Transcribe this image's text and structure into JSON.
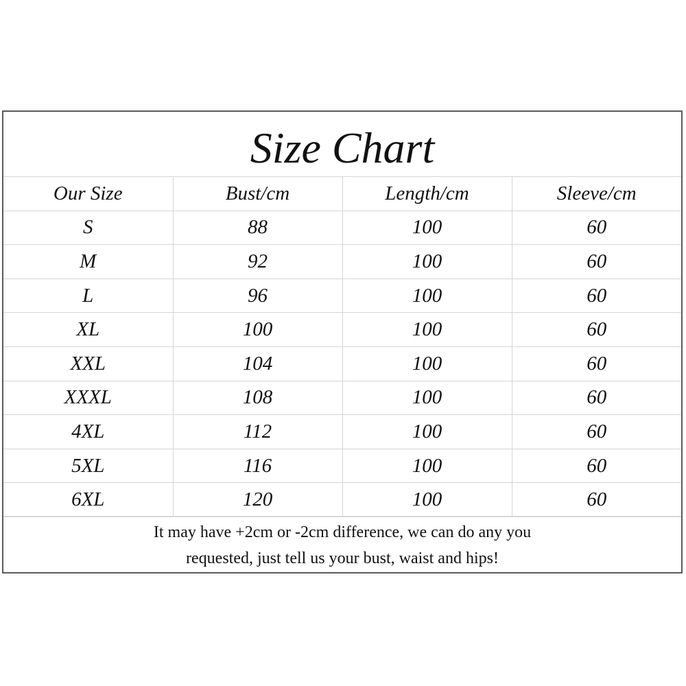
{
  "title": "Size Chart",
  "headers": [
    "Our Size",
    "Bust/cm",
    "Length/cm",
    "Sleeve/cm"
  ],
  "rows": [
    [
      "S",
      "88",
      "100",
      "60"
    ],
    [
      "M",
      "92",
      "100",
      "60"
    ],
    [
      "L",
      "96",
      "100",
      "60"
    ],
    [
      "XL",
      "100",
      "100",
      "60"
    ],
    [
      "XXL",
      "104",
      "100",
      "60"
    ],
    [
      "XXXL",
      "108",
      "100",
      "60"
    ],
    [
      "4XL",
      "112",
      "100",
      "60"
    ],
    [
      "5XL",
      "116",
      "100",
      "60"
    ],
    [
      "6XL",
      "120",
      "100",
      "60"
    ]
  ],
  "note_line1": "It may have +2cm or -2cm difference, we can do any you",
  "note_line2": "requested, just tell us your bust, waist and hips!"
}
